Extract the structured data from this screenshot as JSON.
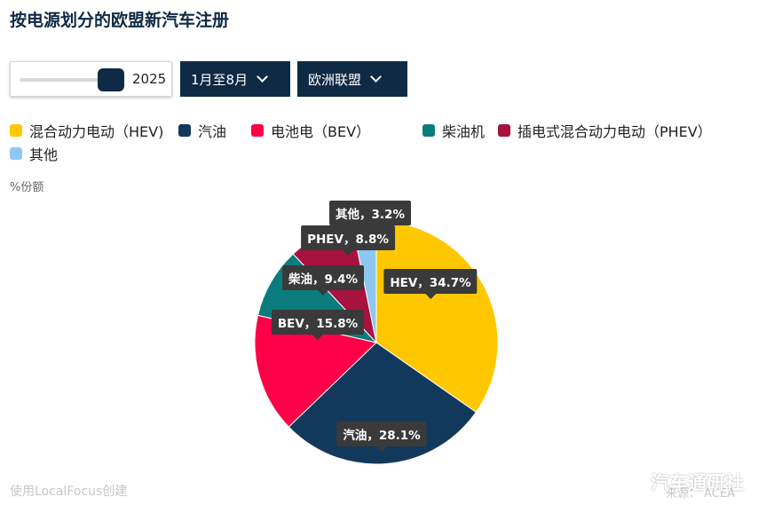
{
  "title": "按电源划分的欧盟新汽车注册",
  "controls": {
    "slider_value": "2025",
    "months_label": "1月至8月",
    "region_label": "欧洲联盟"
  },
  "unit_label": "%份额",
  "credit": "使用LocalFocus创建",
  "source": "来源： ACEA",
  "watermark": "汽车通研社",
  "colors": {
    "hev": "#ffc700",
    "petrol": "#12395b",
    "bev": "#ff0047",
    "diesel": "#0b7c7e",
    "phev": "#a8123e",
    "other": "#8cc8f0"
  },
  "chart_data": {
    "type": "pie",
    "title": "按电源划分的欧盟新汽车注册",
    "legend_position": "top",
    "legend": [
      "混合动力电动（HEV)",
      "汽油",
      "电池电（BEV）",
      "柴油机",
      "插电式混合动力电动（PHEV）",
      "其他"
    ],
    "slices": [
      {
        "key": "hev",
        "legend": "混合动力电动（HEV)",
        "label": "HEV，34.7%",
        "value": 34.7
      },
      {
        "key": "petrol",
        "legend": "汽油",
        "label": "汽油，28.1%",
        "value": 28.1
      },
      {
        "key": "bev",
        "legend": "电池电（BEV）",
        "label": "BEV，15.8%",
        "value": 15.8
      },
      {
        "key": "diesel",
        "legend": "柴油机",
        "label": "柴油，9.4%",
        "value": 9.4
      },
      {
        "key": "phev",
        "legend": "插电式混合动力电动（PHEV）",
        "label": "PHEV，8.8%",
        "value": 8.8
      },
      {
        "key": "other",
        "legend": "其他",
        "label": "其他，3.2%",
        "value": 3.2
      }
    ]
  }
}
